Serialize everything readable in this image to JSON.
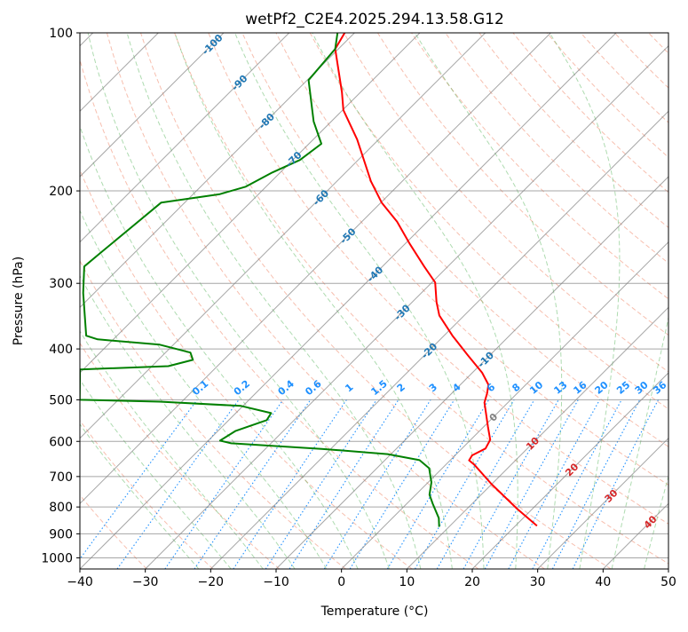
{
  "chart_data": {
    "type": "line",
    "subtype": "skew-t log-p",
    "title": "wetPf2_C2E4.2025.294.13.58.G12",
    "xlabel": "Temperature (°C)",
    "ylabel": "Pressure (hPa)",
    "xlim": [
      -40,
      50
    ],
    "ylim": [
      1050,
      100
    ],
    "x_ticks": [
      "−40",
      "−30",
      "−20",
      "−10",
      "0",
      "10",
      "20",
      "30",
      "40",
      "50"
    ],
    "x_tick_values": [
      -40,
      -30,
      -20,
      -10,
      0,
      10,
      20,
      30,
      40,
      50
    ],
    "y_ticks": [
      "100",
      "200",
      "300",
      "400",
      "500",
      "600",
      "700",
      "800",
      "900",
      "1000"
    ],
    "y_tick_values": [
      100,
      200,
      300,
      400,
      500,
      600,
      700,
      800,
      900,
      1000
    ],
    "grid": true,
    "isotherm_labels": [
      {
        "t": -100,
        "text": "-100"
      },
      {
        "t": -90,
        "text": "-90"
      },
      {
        "t": -80,
        "text": "-80"
      },
      {
        "t": -70,
        "text": "-70"
      },
      {
        "t": -60,
        "text": "-60"
      },
      {
        "t": -50,
        "text": "-50"
      },
      {
        "t": -40,
        "text": "-40"
      },
      {
        "t": -30,
        "text": "-30"
      },
      {
        "t": -20,
        "text": "-20"
      },
      {
        "t": -10,
        "text": "-10"
      },
      {
        "t": 0,
        "text": "0"
      },
      {
        "t": 10,
        "text": "10"
      },
      {
        "t": 20,
        "text": "20"
      },
      {
        "t": 30,
        "text": "30"
      },
      {
        "t": 40,
        "text": "40"
      }
    ],
    "mixing_ratio_labels": [
      "0.1",
      "0.2",
      "0.4",
      "0.6",
      "1",
      "1.5",
      "2",
      "3",
      "4",
      "6",
      "8",
      "10",
      "13",
      "16",
      "20",
      "25",
      "30",
      "36"
    ],
    "mixing_ratio_values": [
      0.1,
      0.2,
      0.4,
      0.6,
      1,
      1.5,
      2,
      3,
      4,
      6,
      8,
      10,
      13,
      16,
      20,
      25,
      30,
      36
    ],
    "series": [
      {
        "name": "Temperature",
        "color": "#ff0000",
        "points": [
          {
            "p": 869,
            "t": 23.3
          },
          {
            "p": 807,
            "t": 17.7
          },
          {
            "p": 724,
            "t": 10.0
          },
          {
            "p": 664,
            "t": 4.3
          },
          {
            "p": 652,
            "t": 2.9
          },
          {
            "p": 638,
            "t": 2.6
          },
          {
            "p": 619,
            "t": 3.6
          },
          {
            "p": 596,
            "t": 3.0
          },
          {
            "p": 562,
            "t": 0.6
          },
          {
            "p": 506,
            "t": -3.6
          },
          {
            "p": 486,
            "t": -4.6
          },
          {
            "p": 468,
            "t": -5.7
          },
          {
            "p": 444,
            "t": -8.5
          },
          {
            "p": 411,
            "t": -13.4
          },
          {
            "p": 377.5,
            "t": -18.7
          },
          {
            "p": 345.4,
            "t": -23.8
          },
          {
            "p": 325.6,
            "t": -26.3
          },
          {
            "p": 298.8,
            "t": -29.5
          },
          {
            "p": 278.7,
            "t": -33.6
          },
          {
            "p": 252.7,
            "t": -39.2
          },
          {
            "p": 229,
            "t": -44.6
          },
          {
            "p": 210.5,
            "t": -49.9
          },
          {
            "p": 191.7,
            "t": -54.8
          },
          {
            "p": 159.6,
            "t": -63.3
          },
          {
            "p": 140.3,
            "t": -69.9
          },
          {
            "p": 129.9,
            "t": -72.8
          },
          {
            "p": 107.3,
            "t": -80.5
          },
          {
            "p": 100,
            "t": -81.5
          }
        ]
      },
      {
        "name": "Dewpoint",
        "color": "#008000",
        "points": [
          {
            "p": 873,
            "t": 8.5
          },
          {
            "p": 840,
            "t": 7.1
          },
          {
            "p": 789,
            "t": 4.0
          },
          {
            "p": 758,
            "t": 2.1
          },
          {
            "p": 718,
            "t": 0.5
          },
          {
            "p": 675,
            "t": -2.0
          },
          {
            "p": 651.6,
            "t": -4.7
          },
          {
            "p": 634.5,
            "t": -10.5
          },
          {
            "p": 620,
            "t": -21.4
          },
          {
            "p": 605,
            "t": -36.1
          },
          {
            "p": 598,
            "t": -38.2
          },
          {
            "p": 573,
            "t": -37.3
          },
          {
            "p": 546.5,
            "t": -34.2
          },
          {
            "p": 530,
            "t": -34.6
          },
          {
            "p": 513.5,
            "t": -40.3
          },
          {
            "p": 504,
            "t": -53.4
          },
          {
            "p": 500,
            "t": -65.9
          },
          {
            "p": 437.7,
            "t": -70.5
          },
          {
            "p": 431.4,
            "t": -57.5
          },
          {
            "p": 419.6,
            "t": -54.7
          },
          {
            "p": 406.4,
            "t": -56.2
          },
          {
            "p": 392.6,
            "t": -62.1
          },
          {
            "p": 383.6,
            "t": -72.4
          },
          {
            "p": 377.5,
            "t": -74.7
          },
          {
            "p": 313,
            "t": -81.7
          },
          {
            "p": 278.6,
            "t": -85.6
          },
          {
            "p": 263,
            "t": -85.2
          },
          {
            "p": 210.5,
            "t": -83.6
          },
          {
            "p": 203,
            "t": -76.0
          },
          {
            "p": 196.3,
            "t": -73.1
          },
          {
            "p": 184.5,
            "t": -71.2
          },
          {
            "p": 174.6,
            "t": -68.9
          },
          {
            "p": 162.7,
            "t": -68.1
          },
          {
            "p": 147.5,
            "t": -72.7
          },
          {
            "p": 123,
            "t": -79.8
          },
          {
            "p": 107.3,
            "t": -80.5
          },
          {
            "p": 100,
            "t": -82.6
          }
        ]
      }
    ],
    "colors": {
      "isotherm": "#808080",
      "dry_adiabat": "#f08060",
      "moist_adiabat": "#4caf50",
      "mixing_ratio": "#1e90ff",
      "isotherm_label_cold": "#1f77b4",
      "isotherm_label_zero": "#808080",
      "isotherm_label_warm": "#d62728"
    }
  }
}
